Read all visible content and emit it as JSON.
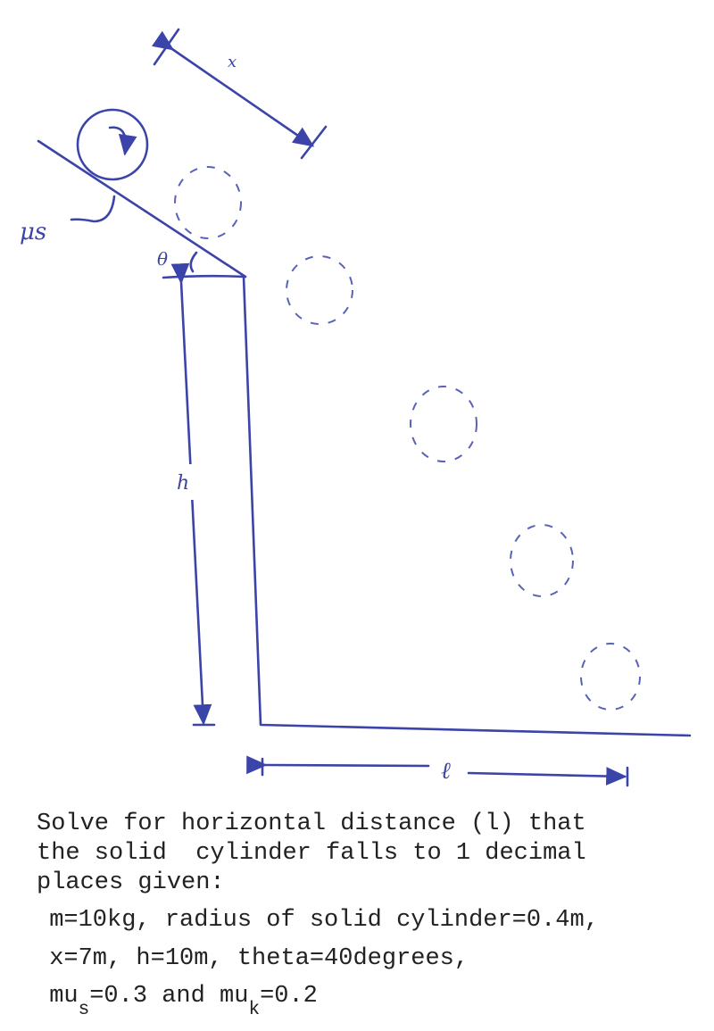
{
  "diagram": {
    "labels": {
      "x": "x",
      "mu_s": "μs",
      "theta": "θ",
      "h": "h",
      "l": "ℓ"
    },
    "ink_color": "#3b44a8"
  },
  "problem": {
    "lines": [
      "Solve for horizontal distance (l) that",
      "the solid  cylinder falls to 1 decimal",
      "places given:",
      " m=10kg, radius of solid cylinder=0.4m,",
      " x=7m, h=10m, theta=40degrees,"
    ],
    "last_line": {
      "mu_s_prefix": " mu",
      "mu_s_sub": "s",
      "mu_s_value": "=0.3 and mu",
      "mu_k_sub": "k",
      "mu_k_value": "=0.2"
    }
  }
}
